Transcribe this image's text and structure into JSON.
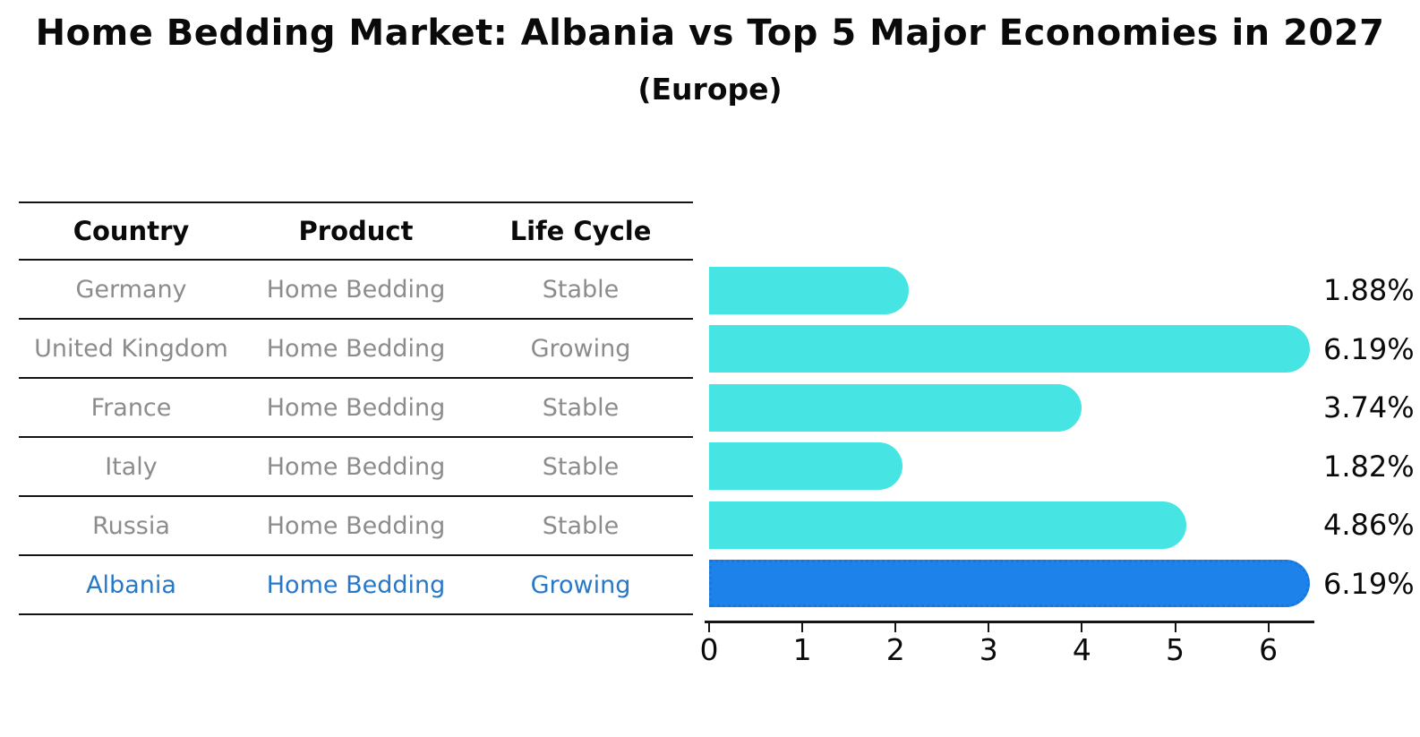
{
  "title": "Home Bedding Market: Albania vs Top 5 Major Economies in 2027",
  "subtitle": "(Europe)",
  "table": {
    "headers": {
      "country": "Country",
      "product": "Product",
      "life_cycle": "Life Cycle"
    },
    "rows": [
      {
        "country": "Germany",
        "product": "Home Bedding",
        "life_cycle": "Stable",
        "highlight": false
      },
      {
        "country": "United Kingdom",
        "product": "Home Bedding",
        "life_cycle": "Growing",
        "highlight": false
      },
      {
        "country": "France",
        "product": "Home Bedding",
        "life_cycle": "Stable",
        "highlight": false
      },
      {
        "country": "Italy",
        "product": "Home Bedding",
        "life_cycle": "Stable",
        "highlight": false
      },
      {
        "country": "Russia",
        "product": "Home Bedding",
        "life_cycle": "Stable",
        "highlight": false
      },
      {
        "country": "Albania",
        "product": "Home Bedding",
        "life_cycle": "Growing",
        "highlight": true
      }
    ]
  },
  "chart_data": {
    "type": "bar",
    "orientation": "horizontal",
    "title": "Home Bedding Market: Albania vs Top 5 Major Economies in 2027 (Europe)",
    "categories": [
      "Germany",
      "United Kingdom",
      "France",
      "Italy",
      "Russia",
      "Albania"
    ],
    "values": [
      1.88,
      6.19,
      3.74,
      1.82,
      4.86,
      6.19
    ],
    "value_labels": [
      "1.88%",
      "6.19%",
      "3.74%",
      "1.82%",
      "4.86%",
      "6.19%"
    ],
    "x_ticks": [
      "0",
      "1",
      "2",
      "3",
      "4",
      "5",
      "6"
    ],
    "xlim": [
      0,
      6.5
    ],
    "grid": false,
    "legend": "none",
    "bar_color": "#46E5E3",
    "highlight_index": 5,
    "highlight_bar_color": "#1E82EB",
    "highlight_bar_border": "#1A75DC",
    "highlight_text_color": "#2878C8",
    "axis_color": "#151515",
    "body_text_color": "#8C8C8C"
  }
}
